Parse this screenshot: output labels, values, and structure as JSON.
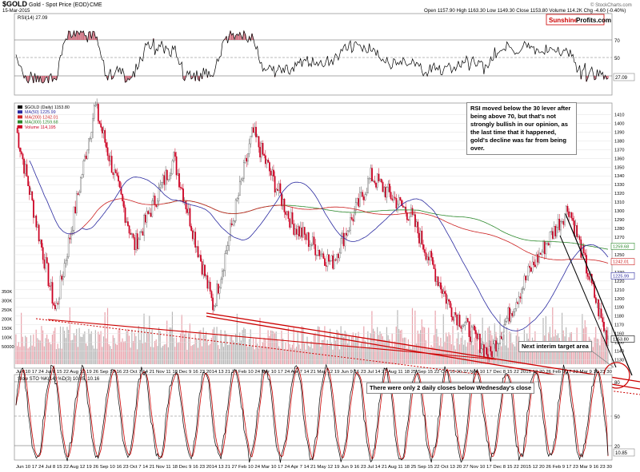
{
  "header": {
    "symbol": "$GOLD",
    "description": "Gold - Spot Price (EOD)",
    "exchange": "CME",
    "date": "15-Mar-2015",
    "quote": "Open 1157.90  High 1163.30  Low 1149.30  Close 1153.80  Volume 114.2K  Chg -4.60 (-0.40%)",
    "watermark": "© StockCharts.com",
    "brand_sunshine": "Sunshine",
    "brand_profits": "Profits.com"
  },
  "colors": {
    "up_candle": "#555555",
    "down_candle": "#cc0022",
    "ma50": "#2a2aa0",
    "ma200": "#cc2020",
    "ma300": "#2d8a2d",
    "rsi_line": "#000000",
    "stoch_slow": "#cc0000",
    "trend_red": "#cc0000"
  },
  "rsi_panel": {
    "legend": "RSI(14) 27.09",
    "levels": [
      "70",
      "50",
      "30"
    ],
    "last_value": "27.09"
  },
  "price_panel": {
    "legend": [
      {
        "text": "$GOLD (Daily) 1153.80",
        "color": "#000000"
      },
      {
        "text": "MA(50) 1225.99",
        "color": "#2a2aa0"
      },
      {
        "text": "MA(200) 1242.01",
        "color": "#cc2020"
      },
      {
        "text": "MA(300) 1259.68",
        "color": "#2d8a2d"
      },
      {
        "text": "Volume 114,195",
        "color": "#cc0022"
      }
    ],
    "price_ticks": [
      "1410",
      "1400",
      "1390",
      "1380",
      "1370",
      "1360",
      "1350",
      "1340",
      "1330",
      "1320",
      "1310",
      "1300",
      "1290",
      "1280",
      "1270",
      "1260",
      "1250",
      "1240",
      "1230",
      "1220",
      "1210",
      "1200",
      "1190",
      "1180",
      "1170",
      "1160",
      "1150",
      "1140",
      "1130"
    ],
    "volume_ticks": [
      "350K",
      "300K",
      "250K",
      "200K",
      "150K",
      "100K",
      "50000"
    ],
    "value_tags": [
      {
        "text": "1259.68",
        "color": "#2d8a2d"
      },
      {
        "text": "1242.01",
        "color": "#cc2020"
      },
      {
        "text": "1225.99",
        "color": "#2a2aa0"
      },
      {
        "text": "1153.80",
        "color": "#000000"
      }
    ]
  },
  "stoch_panel": {
    "legend": "Slow STO %K(14) %D(3) 10.85, 10.16",
    "levels": [
      "80",
      "50",
      "20"
    ],
    "last_value": "10.85"
  },
  "date_axis": "Jun 10 17 24 Jul 8 15 22 Aug 12 19 26 Sep 10 16 23 Oct 7 14 21 Nov 11 18 Dec 9 16 23 2014 13 21 27 Feb 10 24 Mar 10 17 24 Apr 7 14 21 May 12 19 Jun 9 16 23 Jul 14 21 Aug 11 18 25 Sep 15 22 Oct 13 20 27 Nov 10 17 Dec 8 15 22 2015 12 20 26 Feb 9 17 23 Mar 9 16 23 30",
  "annotations": {
    "rsi_note": "RSI moved below the 30 lever after being above 70, but that's not strongly bullish in our opinion, as the last time that it happened, gold's decline was far from being over.",
    "target_note": "Next interim target area",
    "closes_note": "There were only 2 daily closes below Wednesday's close"
  },
  "chart_data": {
    "type": "candlestick",
    "title": "$GOLD Gold - Spot Price (EOD)",
    "period": "Jun 2013 - Mar 2015 (Daily)",
    "last_close": 1153.8,
    "ma": {
      "MA(50)": 1225.99,
      "MA(200)": 1242.01,
      "MA(300)": 1259.68
    },
    "ylim": [
      1125,
      1415
    ],
    "price_swings": [
      {
        "date": "Jun 2013",
        "price": 1395
      },
      {
        "date": "Jul 2013",
        "price": 1185
      },
      {
        "date": "Aug 2013",
        "price": 1420
      },
      {
        "date": "Oct 2013",
        "price": 1260
      },
      {
        "date": "Oct 2013",
        "price": 1360
      },
      {
        "date": "Dec 2013",
        "price": 1190
      },
      {
        "date": "Mar 2014",
        "price": 1390
      },
      {
        "date": "Apr 2014",
        "price": 1285
      },
      {
        "date": "Jun 2014",
        "price": 1240
      },
      {
        "date": "Jul 2014",
        "price": 1340
      },
      {
        "date": "Aug 2014",
        "price": 1295
      },
      {
        "date": "Oct 2014",
        "price": 1190
      },
      {
        "date": "Nov 2014",
        "price": 1135
      },
      {
        "date": "Dec 2014",
        "price": 1230
      },
      {
        "date": "Jan 2015",
        "price": 1305
      },
      {
        "date": "Mar 2015",
        "price": 1150
      }
    ],
    "rsi": {
      "last": 27.09,
      "levels": [
        30,
        50,
        70
      ]
    },
    "stochastic": {
      "k": 10.85,
      "d": 10.16,
      "levels": [
        20,
        50,
        80
      ]
    }
  }
}
